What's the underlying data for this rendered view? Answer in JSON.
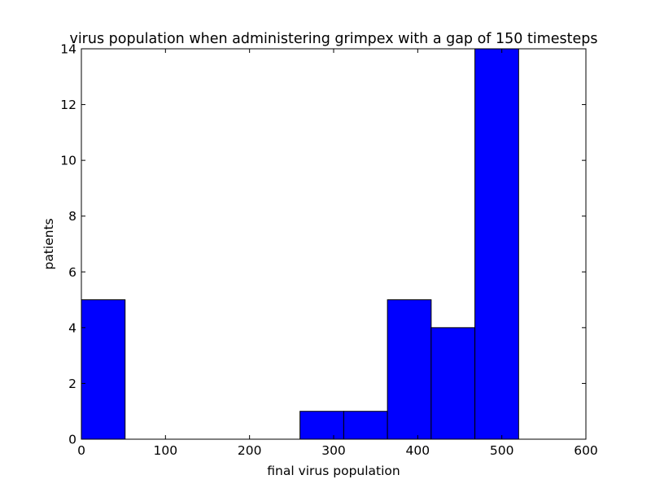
{
  "chart_data": {
    "type": "bar",
    "title": "virus population when administering grimpex with a gap of 150 timesteps",
    "xlabel": "final virus population",
    "ylabel": "patients",
    "xlim": [
      0,
      600
    ],
    "ylim": [
      0,
      14
    ],
    "xticks": [
      0,
      100,
      200,
      300,
      400,
      500,
      600
    ],
    "yticks": [
      0,
      2,
      4,
      6,
      8,
      10,
      12,
      14
    ],
    "grid": false,
    "bar_color": "#0000ff",
    "bins": [
      {
        "x0": 0,
        "x1": 52,
        "count": 5
      },
      {
        "x0": 52,
        "x1": 104,
        "count": 0
      },
      {
        "x0": 104,
        "x1": 156,
        "count": 0
      },
      {
        "x0": 156,
        "x1": 208,
        "count": 0
      },
      {
        "x0": 208,
        "x1": 260,
        "count": 0
      },
      {
        "x0": 260,
        "x1": 312,
        "count": 1
      },
      {
        "x0": 312,
        "x1": 364,
        "count": 1
      },
      {
        "x0": 364,
        "x1": 416,
        "count": 5
      },
      {
        "x0": 416,
        "x1": 468,
        "count": 4
      },
      {
        "x0": 468,
        "x1": 520,
        "count": 14
      }
    ]
  }
}
